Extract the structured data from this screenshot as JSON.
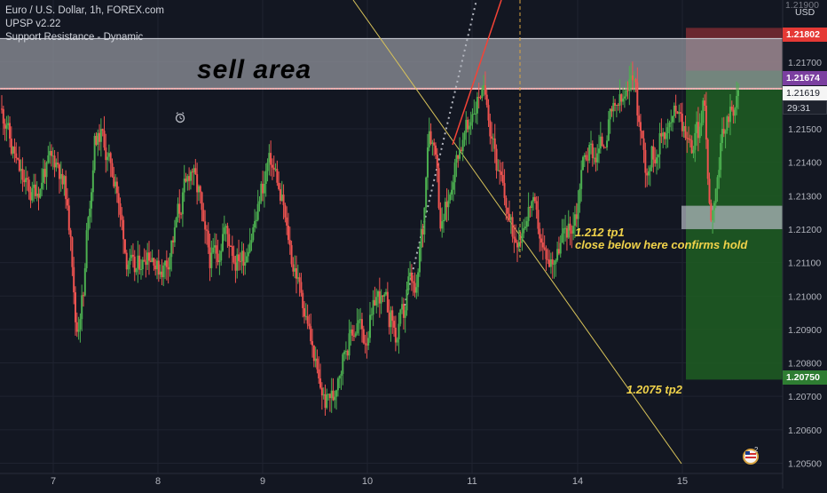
{
  "header": {
    "title": "Euro / U.S. Dollar, 1h, FOREX.com",
    "indicator_1": "UPSP v2.22",
    "indicator_2": "Support Resistance - Dynamic"
  },
  "currency_label": "USD",
  "annotations": {
    "sell_area": "sell area",
    "tp1_line1": "1.212 tp1",
    "tp1_line2": "close below here confirms hold",
    "tp2": "1.2075 tp2"
  },
  "price_labels": {
    "stop": "1.21802",
    "entry": "1.21674",
    "current": "1.21619",
    "countdown": "29:31",
    "target": "1.20750",
    "top_partial": "1.21900"
  },
  "colors": {
    "background": "#131722",
    "bull": "#4caf50",
    "bear": "#ef5350",
    "stop_zone": "#7a2a31",
    "target_zone": "#1e5e22",
    "entry_tag": "#7b3fa0",
    "stop_tag": "#e53935",
    "target_tag": "#2e7d32",
    "sell_zone": "#9598a1",
    "trendline": "#d9c45a"
  },
  "chart_data": {
    "type": "candlestick",
    "symbol": "EURUSD",
    "timeframe": "1h",
    "x_tick_labels": [
      "7",
      "8",
      "9",
      "10",
      "11",
      "14",
      "15"
    ],
    "y_tick_labels": [
      "1.21700",
      "1.21500",
      "1.21400",
      "1.21300",
      "1.21200",
      "1.21100",
      "1.21000",
      "1.20900",
      "1.20800",
      "1.20700",
      "1.20600",
      "1.20500"
    ],
    "ylim": [
      1.2048,
      1.2188
    ],
    "levels": {
      "sell_area_top": 1.2177,
      "sell_area_bottom": 1.2162,
      "stop_loss": 1.21802,
      "entry": 1.21674,
      "current": 1.21619,
      "take_profit": 1.2075,
      "tp1_box_top": 1.2127,
      "tp1_box_bottom": 1.212
    },
    "close_path": [
      1.2152,
      1.2143,
      1.2138,
      1.2133,
      1.213,
      1.2132,
      1.2138,
      1.2141,
      1.214,
      1.2133,
      1.212,
      1.209,
      1.21,
      1.2128,
      1.2148,
      1.2148,
      1.214,
      1.2135,
      1.2122,
      1.211,
      1.2108,
      1.211,
      1.2113,
      1.2112,
      1.2108,
      1.211,
      1.2117,
      1.2126,
      1.2133,
      1.2138,
      1.2131,
      1.2118,
      1.211,
      1.2113,
      1.212,
      1.2116,
      1.211,
      1.2112,
      1.2117,
      1.2123,
      1.2133,
      1.214,
      1.2137,
      1.2128,
      1.2118,
      1.2108,
      1.2102,
      1.2093,
      1.2083,
      1.2073,
      1.2068,
      1.207,
      1.2078,
      1.2085,
      1.209,
      1.2092,
      1.2087,
      1.2093,
      1.21,
      1.2098,
      1.2093,
      1.2087,
      1.2095,
      1.2105,
      1.21,
      1.212,
      1.215,
      1.2145,
      1.212,
      1.2128,
      1.2138,
      1.2145,
      1.215,
      1.2156,
      1.2161,
      1.216,
      1.2148,
      1.2135,
      1.2128,
      1.212,
      1.2118,
      1.2123,
      1.2128,
      1.2122,
      1.2113,
      1.211,
      1.2112,
      1.2118,
      1.212,
      1.2125,
      1.214,
      1.2143,
      1.2142,
      1.2146,
      1.215,
      1.2155,
      1.2158,
      1.216,
      1.2167,
      1.215,
      1.2138,
      1.2143,
      1.2146,
      1.215,
      1.2152,
      1.2157,
      1.215,
      1.2145,
      1.215,
      1.2157,
      1.2125,
      1.2135,
      1.2148,
      1.2155,
      1.2158,
      1.2162
    ]
  }
}
